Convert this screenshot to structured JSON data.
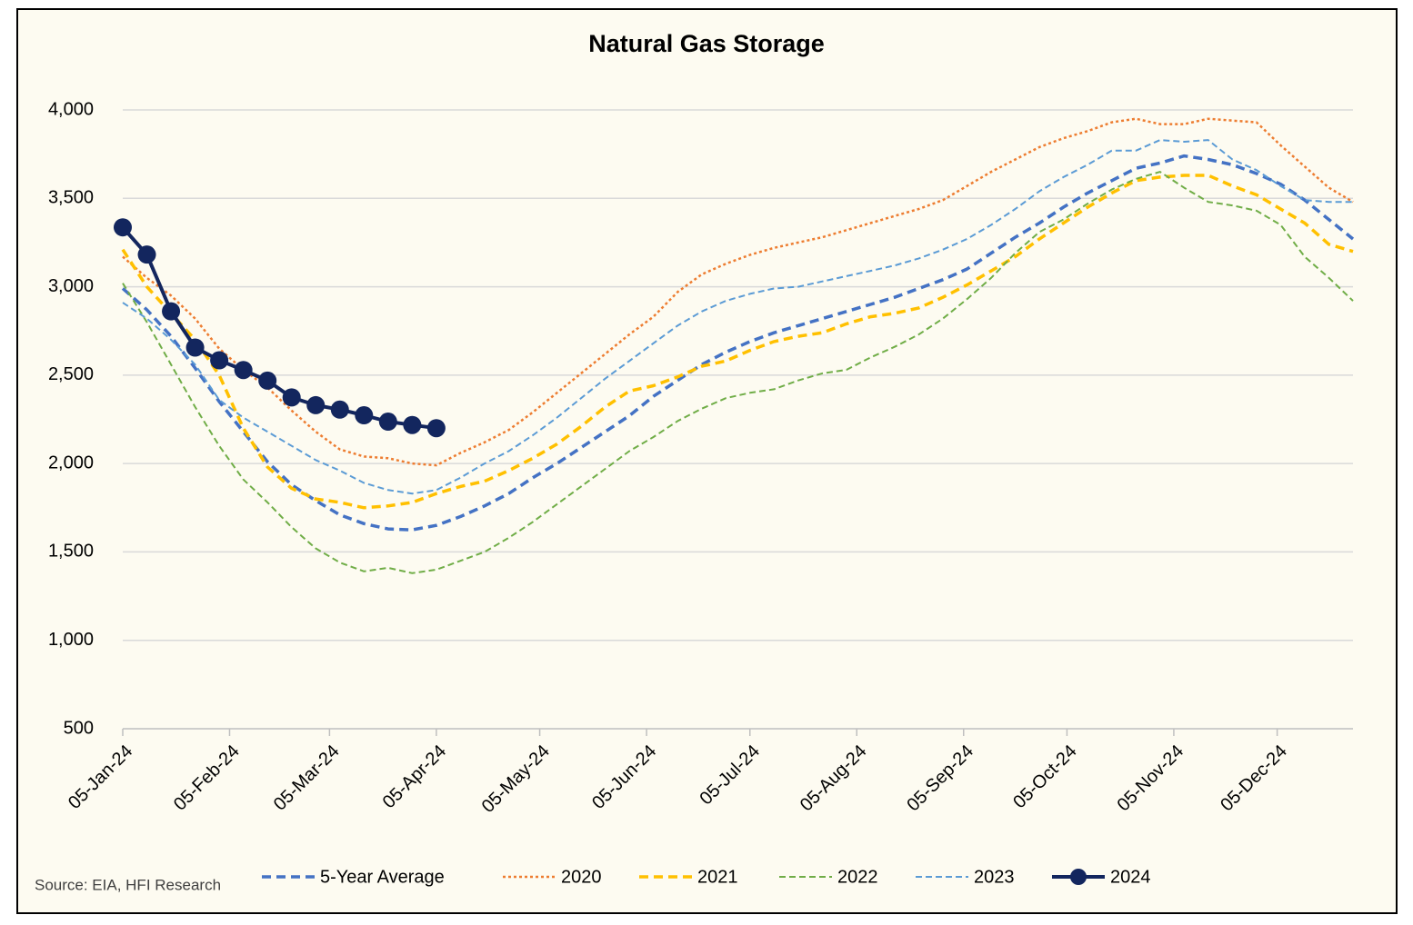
{
  "chart_data": {
    "type": "line",
    "title": "Natural Gas Storage",
    "source": "Source: EIA, HFI Research",
    "x": [
      "2024-01-05",
      "2024-01-12",
      "2024-01-19",
      "2024-01-26",
      "2024-02-02",
      "2024-02-09",
      "2024-02-16",
      "2024-02-23",
      "2024-03-01",
      "2024-03-08",
      "2024-03-15",
      "2024-03-22",
      "2024-03-29",
      "2024-04-05",
      "2024-04-12",
      "2024-04-19",
      "2024-04-26",
      "2024-05-03",
      "2024-05-10",
      "2024-05-17",
      "2024-05-24",
      "2024-05-31",
      "2024-06-07",
      "2024-06-14",
      "2024-06-21",
      "2024-06-28",
      "2024-07-05",
      "2024-07-12",
      "2024-07-19",
      "2024-07-26",
      "2024-08-02",
      "2024-08-09",
      "2024-08-16",
      "2024-08-23",
      "2024-08-30",
      "2024-09-06",
      "2024-09-13",
      "2024-09-20",
      "2024-09-27",
      "2024-10-04",
      "2024-10-11",
      "2024-10-18",
      "2024-10-25",
      "2024-11-01",
      "2024-11-08",
      "2024-11-15",
      "2024-11-22",
      "2024-11-29",
      "2024-12-06",
      "2024-12-13",
      "2024-12-20",
      "2024-12-27"
    ],
    "xlim": [
      "2024-01-05",
      "2024-12-27"
    ],
    "xticks": [
      {
        "value": "2024-01-05",
        "label": "05-Jan-24"
      },
      {
        "value": "2024-02-05",
        "label": "05-Feb-24"
      },
      {
        "value": "2024-03-05",
        "label": "05-Mar-24"
      },
      {
        "value": "2024-04-05",
        "label": "05-Apr-24"
      },
      {
        "value": "2024-05-05",
        "label": "05-May-24"
      },
      {
        "value": "2024-06-05",
        "label": "05-Jun-24"
      },
      {
        "value": "2024-07-05",
        "label": "05-Jul-24"
      },
      {
        "value": "2024-08-05",
        "label": "05-Aug-24"
      },
      {
        "value": "2024-09-05",
        "label": "05-Sep-24"
      },
      {
        "value": "2024-10-05",
        "label": "05-Oct-24"
      },
      {
        "value": "2024-11-05",
        "label": "05-Nov-24"
      },
      {
        "value": "2024-12-05",
        "label": "05-Dec-24"
      }
    ],
    "ylim": [
      500,
      4000
    ],
    "yticks": [
      500,
      {
        "value": 1000,
        "label": "1,000"
      },
      {
        "value": 1500,
        "label": "1,500"
      },
      {
        "value": 2000,
        "label": "2,000"
      },
      {
        "value": 2500,
        "label": "2,500"
      },
      {
        "value": 3000,
        "label": "3,000"
      },
      {
        "value": 3500,
        "label": "3,500"
      },
      {
        "value": 4000,
        "label": "4,000"
      }
    ],
    "grid": true,
    "legend": "bottom",
    "series": [
      {
        "name": "5-Year Average",
        "color": "#4472c4",
        "dash": "dashed",
        "values": [
          2990,
          2870,
          2720,
          2540,
          2350,
          2180,
          2010,
          1880,
          1790,
          1710,
          1660,
          1630,
          1625,
          1650,
          1700,
          1760,
          1830,
          1920,
          2000,
          2090,
          2180,
          2270,
          2380,
          2470,
          2560,
          2630,
          2690,
          2740,
          2780,
          2820,
          2860,
          2900,
          2940,
          2990,
          3040,
          3100,
          3190,
          3280,
          3360,
          3450,
          3530,
          3600,
          3670,
          3700,
          3740,
          3720,
          3690,
          3640,
          3580,
          3490,
          3380,
          3270
        ]
      },
      {
        "name": "2020",
        "color": "#ed7d31",
        "dash": "dotted",
        "values": [
          3170,
          3050,
          2950,
          2820,
          2650,
          2530,
          2430,
          2300,
          2180,
          2080,
          2040,
          2030,
          2000,
          1990,
          2060,
          2120,
          2190,
          2290,
          2400,
          2510,
          2620,
          2730,
          2830,
          2970,
          3070,
          3130,
          3180,
          3220,
          3250,
          3280,
          3320,
          3360,
          3400,
          3440,
          3490,
          3570,
          3650,
          3720,
          3790,
          3840,
          3880,
          3930,
          3950,
          3920,
          3920,
          3950,
          3940,
          3930,
          3800,
          3680,
          3560,
          3480
        ]
      },
      {
        "name": "2021",
        "color": "#ffc000",
        "dash": "dashed",
        "values": [
          3210,
          3000,
          2850,
          2700,
          2500,
          2200,
          1980,
          1860,
          1800,
          1780,
          1750,
          1760,
          1780,
          1830,
          1870,
          1900,
          1960,
          2030,
          2110,
          2210,
          2320,
          2410,
          2440,
          2490,
          2550,
          2580,
          2640,
          2690,
          2720,
          2740,
          2790,
          2830,
          2850,
          2880,
          2940,
          3010,
          3090,
          3170,
          3270,
          3360,
          3450,
          3530,
          3600,
          3620,
          3630,
          3630,
          3570,
          3520,
          3440,
          3360,
          3240,
          3200
        ]
      },
      {
        "name": "2022",
        "color": "#70ad47",
        "dash": "thin-dashed",
        "values": [
          3020,
          2800,
          2560,
          2320,
          2100,
          1910,
          1780,
          1640,
          1520,
          1440,
          1390,
          1410,
          1380,
          1400,
          1450,
          1500,
          1580,
          1670,
          1770,
          1870,
          1970,
          2070,
          2150,
          2240,
          2310,
          2370,
          2400,
          2420,
          2470,
          2510,
          2530,
          2600,
          2660,
          2730,
          2820,
          2930,
          3050,
          3190,
          3310,
          3380,
          3470,
          3550,
          3610,
          3650,
          3560,
          3480,
          3460,
          3430,
          3350,
          3170,
          3050,
          2920
        ]
      },
      {
        "name": "2023",
        "color": "#5b9bd5",
        "dash": "thin-dashed",
        "values": [
          2910,
          2820,
          2700,
          2560,
          2360,
          2260,
          2180,
          2100,
          2020,
          1960,
          1890,
          1850,
          1830,
          1850,
          1920,
          2000,
          2070,
          2160,
          2260,
          2370,
          2480,
          2580,
          2680,
          2780,
          2860,
          2920,
          2960,
          2990,
          3000,
          3030,
          3060,
          3090,
          3120,
          3160,
          3210,
          3270,
          3350,
          3440,
          3540,
          3620,
          3690,
          3770,
          3770,
          3830,
          3820,
          3830,
          3720,
          3660,
          3570,
          3490,
          3480,
          3480
        ]
      },
      {
        "name": "2024",
        "color": "#13265e",
        "dash": "solid",
        "marker": true,
        "values": [
          3336,
          3182,
          2861,
          2656,
          2584,
          2529,
          2469,
          2374,
          2330,
          2305,
          2273,
          2237,
          2218,
          2200,
          null,
          null,
          null,
          null,
          null,
          null,
          null,
          null,
          null,
          null,
          null,
          null,
          null,
          null,
          null,
          null,
          null,
          null,
          null,
          null,
          null,
          null,
          null,
          null,
          null,
          null,
          null,
          null,
          null,
          null,
          null,
          null,
          null,
          null,
          null,
          null,
          null,
          null
        ]
      }
    ]
  }
}
